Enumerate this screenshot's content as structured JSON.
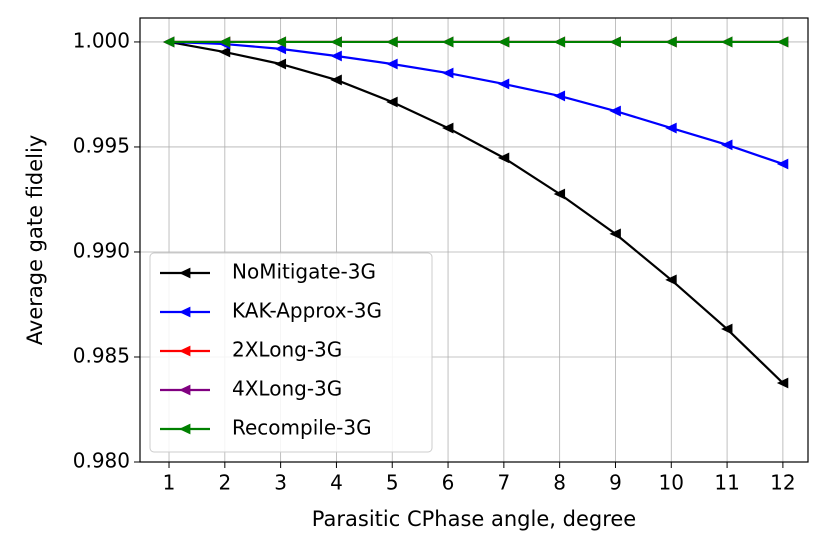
{
  "chart_data": {
    "type": "line",
    "xlabel": "Parasitic CPhase angle, degree",
    "ylabel": "Average gate fideliy",
    "x": [
      1,
      2,
      3,
      4,
      5,
      6,
      7,
      8,
      9,
      10,
      11,
      12
    ],
    "series": [
      {
        "name": "NoMitigate-3G",
        "color": "#000000",
        "values": [
          1.0,
          0.99952,
          0.99895,
          0.99819,
          0.99714,
          0.9959,
          0.99448,
          0.99276,
          0.99086,
          0.98867,
          0.98633,
          0.98376
        ]
      },
      {
        "name": "KAK-Approx-3G",
        "color": "#0000ff",
        "values": [
          1.0,
          0.9999,
          0.99967,
          0.99933,
          0.99895,
          0.99852,
          0.998,
          0.99743,
          0.99671,
          0.9959,
          0.9951,
          0.99419
        ]
      },
      {
        "name": "2XLong-3G",
        "color": "#ff0000",
        "values": [
          1.0,
          1.0,
          1.0,
          1.0,
          1.0,
          1.0,
          1.0,
          1.0,
          1.0,
          1.0,
          1.0,
          1.0
        ]
      },
      {
        "name": "4XLong-3G",
        "color": "#800080",
        "values": [
          1.0,
          1.0,
          1.0,
          1.0,
          1.0,
          1.0,
          1.0,
          1.0,
          1.0,
          1.0,
          1.0,
          1.0
        ]
      },
      {
        "name": "Recompile-3G",
        "color": "#008000",
        "values": [
          1.0,
          1.0,
          1.0,
          1.0,
          1.0,
          1.0,
          1.0,
          1.0,
          1.0,
          1.0,
          1.0,
          1.0
        ]
      }
    ],
    "xlim": [
      0.48,
      12.45
    ],
    "ylim": [
      0.98,
      1.00114
    ],
    "xticks": [
      1,
      2,
      3,
      4,
      5,
      6,
      7,
      8,
      9,
      10,
      11,
      12
    ],
    "yticks": [
      {
        "value": 0.98,
        "label": "0.980"
      },
      {
        "value": 0.985,
        "label": "0.985"
      },
      {
        "value": 0.99,
        "label": "0.990"
      },
      {
        "value": 0.995,
        "label": "0.995"
      },
      {
        "value": 1.0,
        "label": "1.000"
      }
    ],
    "grid": true,
    "legend": "lower left"
  }
}
